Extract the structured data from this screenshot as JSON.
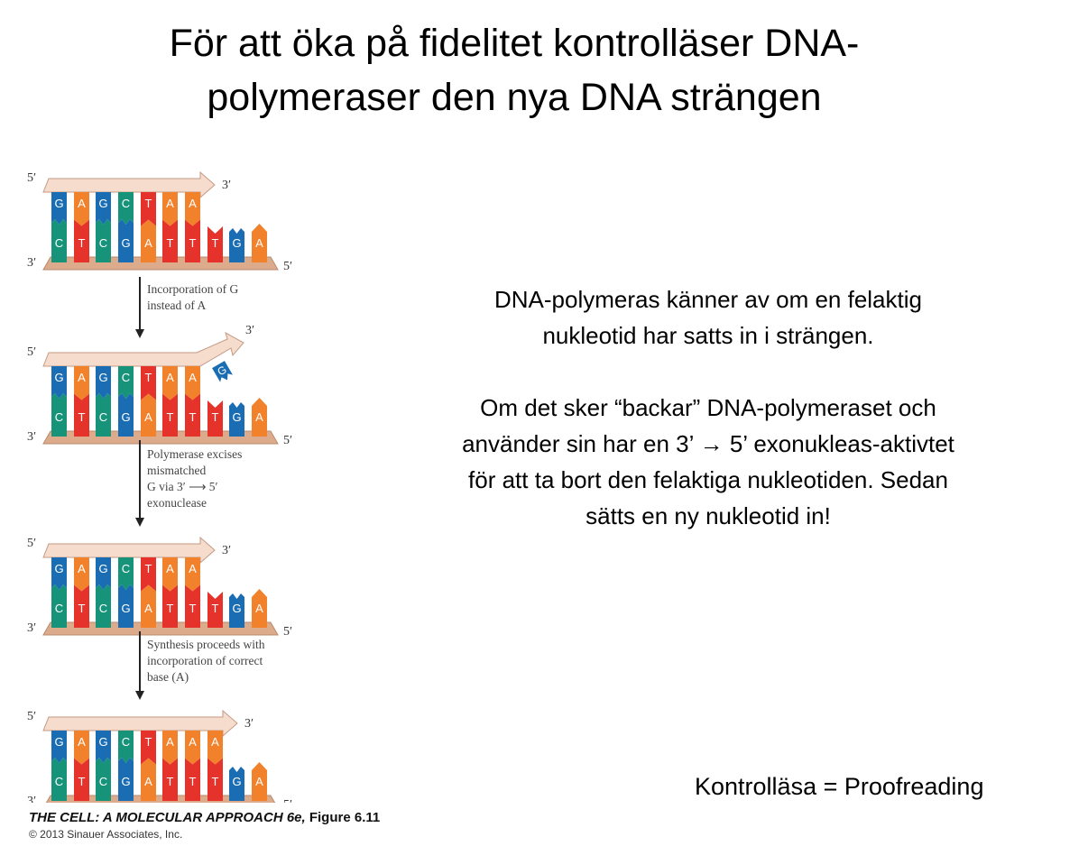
{
  "title": {
    "line1": "För att öka på fidelitet kontrolläser DNA-",
    "line2": "polymeraser den nya DNA strängen"
  },
  "body": {
    "p1_line1": "DNA-polymeras känner av om en felaktig",
    "p1_line2": "nukleotid har satts in i strängen.",
    "p2_line1": "Om det sker “backar” DNA-polymeraset och",
    "p2_line2": "använder sin har en 3’ → 5’ exonukleas-aktivtet",
    "p2_line3": "för att ta bort den felaktiga nukleotiden. Sedan",
    "p2_line4": "sätts en ny nukleotid in!"
  },
  "footnote": "Kontrolläsa = Proofreading",
  "figure": {
    "colors": {
      "G": "#1a6db3",
      "A": "#f2812b",
      "C": "#17937a",
      "T": "#e5322b",
      "strand": "#f5dccd",
      "backbone": "#dcab8c"
    },
    "end_labels": {
      "five": "5′",
      "three": "3′"
    },
    "panels": [
      {
        "top": [
          "G",
          "A",
          "G",
          "C",
          "T",
          "A",
          "A"
        ],
        "bottom": [
          "C",
          "T",
          "C",
          "G",
          "A",
          "T",
          "T",
          "T",
          "G",
          "A"
        ],
        "mismatch": ""
      },
      {
        "top": [
          "G",
          "A",
          "G",
          "C",
          "T",
          "A",
          "A"
        ],
        "bottom": [
          "C",
          "T",
          "C",
          "G",
          "A",
          "T",
          "T",
          "T",
          "G",
          "A"
        ],
        "mismatch": "G"
      },
      {
        "top": [
          "G",
          "A",
          "G",
          "C",
          "T",
          "A",
          "A"
        ],
        "bottom": [
          "C",
          "T",
          "C",
          "G",
          "A",
          "T",
          "T",
          "T",
          "G",
          "A"
        ],
        "mismatch": ""
      },
      {
        "top": [
          "G",
          "A",
          "G",
          "C",
          "T",
          "A",
          "A",
          "A"
        ],
        "bottom": [
          "C",
          "T",
          "C",
          "G",
          "A",
          "T",
          "T",
          "T",
          "G",
          "A"
        ],
        "mismatch": ""
      }
    ],
    "steps": [
      "Incorporation of G\ninstead of A",
      "Polymerase excises\nmismatched\nG via 3′ ⟶ 5′\nexonuclease",
      "Synthesis proceeds with\nincorporation of correct\nbase (A)"
    ],
    "caption_title": "THE CELL: A MOLECULAR APPROACH 6e,",
    "caption_fig": " Figure 6.11",
    "copyright": "© 2013 Sinauer Associates, Inc."
  }
}
